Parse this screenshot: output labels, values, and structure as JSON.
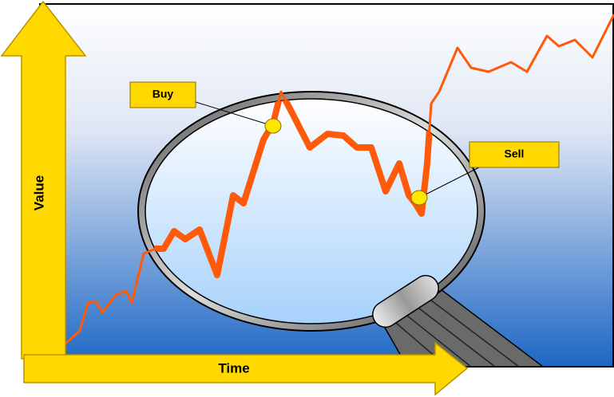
{
  "axes": {
    "y_label": "Value",
    "x_label": "Time"
  },
  "callouts": [
    {
      "label": "Buy"
    },
    {
      "label": "Sell"
    }
  ]
}
